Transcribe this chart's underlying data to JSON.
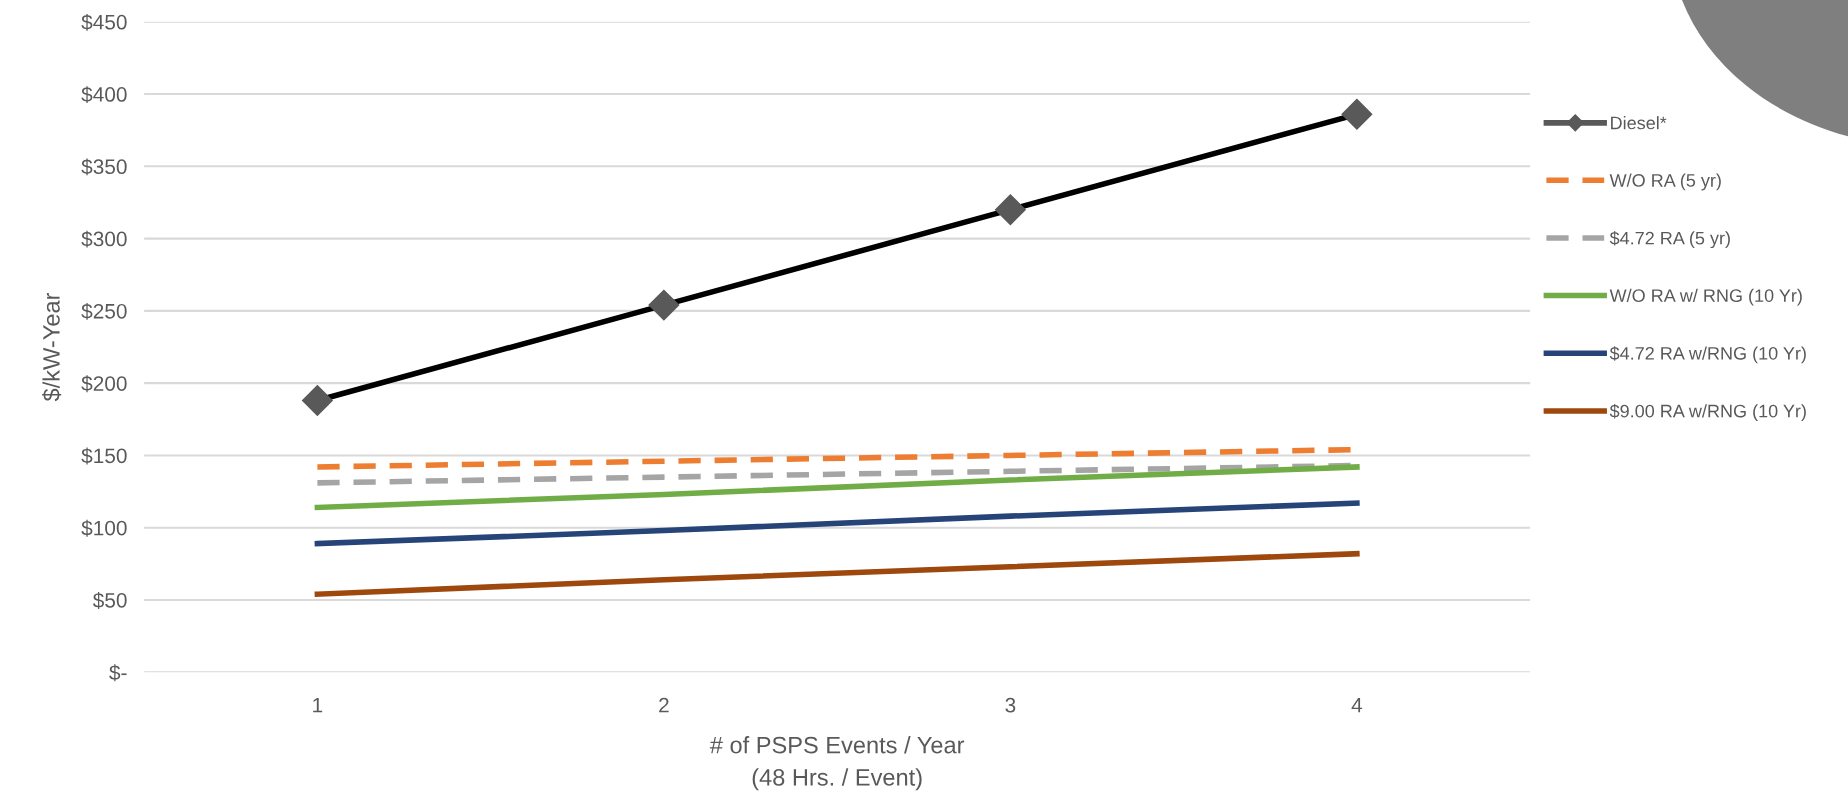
{
  "chart_data": {
    "type": "line",
    "xlabel": "# of PSPS Events / Year\n(48 Hrs. / Event)",
    "ylabel": "$/kW-Year",
    "categories": [
      "1",
      "2",
      "3",
      "4"
    ],
    "series": [
      {
        "name": "Diesel*",
        "color": "#000000",
        "values": [
          188,
          254,
          320,
          386
        ],
        "marker": "diamond",
        "line_style": "solid"
      },
      {
        "name": "W/O RA (5 yr)",
        "color": "#ed7d31",
        "values": [
          142,
          146,
          150,
          154
        ],
        "marker": "none",
        "line_style": "dashed"
      },
      {
        "name": "$4.72 RA (5 yr)",
        "color": "#a5a5a5",
        "values": [
          131,
          135,
          139,
          143
        ],
        "marker": "none",
        "line_style": "dashed"
      },
      {
        "name": "W/O RA w/ RNG (10 Yr)",
        "color": "#70ad47",
        "values": [
          114,
          123,
          133,
          142
        ],
        "marker": "none",
        "line_style": "solid"
      },
      {
        "name": "$4.72 RA w/RNG (10 Yr)",
        "color": "#264478",
        "values": [
          89,
          98,
          108,
          117
        ],
        "marker": "none",
        "line_style": "solid"
      },
      {
        "name": "$9.00 RA w/RNG (10 Yr)",
        "color": "#9e480e",
        "values": [
          54,
          64,
          73,
          82
        ],
        "marker": "none",
        "line_style": "solid"
      }
    ],
    "ylim": [
      0,
      450
    ],
    "yticks": [
      {
        "value": 0,
        "label": "$-"
      },
      {
        "value": 50,
        "label": "$50"
      },
      {
        "value": 100,
        "label": "$100"
      },
      {
        "value": 150,
        "label": "$150"
      },
      {
        "value": 200,
        "label": "$200"
      },
      {
        "value": 250,
        "label": "$250"
      },
      {
        "value": 300,
        "label": "$300"
      },
      {
        "value": 350,
        "label": "$350"
      },
      {
        "value": 400,
        "label": "$400"
      },
      {
        "value": 450,
        "label": "$450"
      }
    ],
    "grid": "y",
    "legend": "right"
  }
}
